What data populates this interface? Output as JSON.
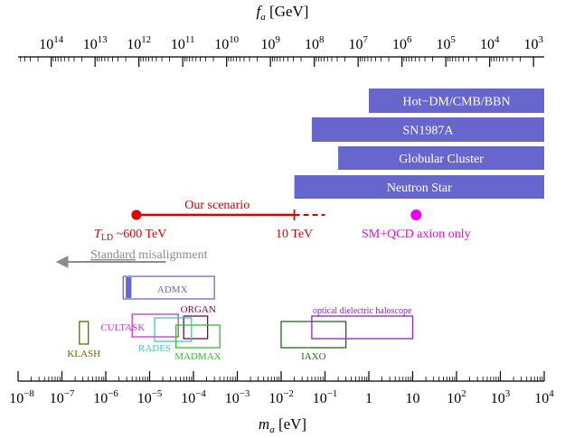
{
  "chart_data": {
    "type": "exclusion-plot",
    "x_bottom": {
      "var": "m",
      "sub": "a",
      "unit": "[eV]",
      "scale": "log",
      "range": [
        1e-08,
        10000.0
      ],
      "ticks": [
        {
          "b": "10",
          "e": "−8"
        },
        {
          "b": "10",
          "e": "−7"
        },
        {
          "b": "10",
          "e": "−6"
        },
        {
          "b": "10",
          "e": "−5"
        },
        {
          "b": "10",
          "e": "−4"
        },
        {
          "b": "10",
          "e": "−3"
        },
        {
          "b": "10",
          "e": "−2"
        },
        {
          "b": "10",
          "e": "−1"
        },
        {
          "b": "1",
          "e": ""
        },
        {
          "b": "10",
          "e": ""
        },
        {
          "b": "10",
          "e": "2"
        },
        {
          "b": "10",
          "e": "3"
        },
        {
          "b": "10",
          "e": "4"
        }
      ]
    },
    "x_top": {
      "var": "f",
      "sub": "a",
      "unit": "[GeV]",
      "scale": "log",
      "relation": "f_a = 5.7e6 GeV / (m_a / eV)",
      "ticks": [
        {
          "b": "10",
          "e": "14",
          "fa": 100000000000000.0
        },
        {
          "b": "10",
          "e": "13",
          "fa": 10000000000000.0
        },
        {
          "b": "10",
          "e": "12",
          "fa": 1000000000000.0
        },
        {
          "b": "10",
          "e": "11",
          "fa": 100000000000.0
        },
        {
          "b": "10",
          "e": "10",
          "fa": 10000000000.0
        },
        {
          "b": "10",
          "e": "9",
          "fa": 1000000000.0
        },
        {
          "b": "10",
          "e": "8",
          "fa": 100000000.0
        },
        {
          "b": "10",
          "e": "7",
          "fa": 10000000.0
        },
        {
          "b": "10",
          "e": "6",
          "fa": 1000000.0
        },
        {
          "b": "10",
          "e": "5",
          "fa": 100000.0
        },
        {
          "b": "10",
          "e": "4",
          "fa": 10000.0
        },
        {
          "b": "10",
          "e": "3",
          "fa": 1000.0
        }
      ]
    },
    "bounds": [
      {
        "label": "Hot−DM/CMB/BBN",
        "m_min": 1.0,
        "m_max": 10000.0,
        "color": "#6666cc"
      },
      {
        "label": "SN1987A",
        "m_min": 0.05,
        "m_max": 10000.0,
        "color": "#6666cc"
      },
      {
        "label": "Globular Cluster",
        "m_min": 0.2,
        "m_max": 10000.0,
        "color": "#6666cc"
      },
      {
        "label": "Neutron Star",
        "m_min": 0.02,
        "m_max": 10000.0,
        "color": "#6666cc"
      }
    ],
    "our_scenario": {
      "label": "Our scenario",
      "color": "#dd0000",
      "start_m": 5e-06,
      "solid_end_m": 0.02,
      "dashed_end_m": 0.1,
      "start_label": {
        "T": "T",
        "sub": "LD",
        "rest": " ~600 TeV"
      },
      "end_label": "10 TeV"
    },
    "sm_qcd": {
      "label": "SM+QCD axion only",
      "m": 12,
      "color": "#ee00ee"
    },
    "standard_misalignment": {
      "label_underlined": "Standard",
      "label_rest": " misalignment",
      "color": "#8c8c8c",
      "from_m": 1e-05,
      "to_m": 1e-07
    },
    "experiments": [
      {
        "label": "ADMX",
        "m_min": 2.5e-06,
        "m_max": 0.0003,
        "y_top": 0.0,
        "y_bot": 1.0,
        "color": "#6666cc",
        "filled_band": [
          2.6e-06,
          3.5e-06
        ]
      },
      {
        "label": "ORGAN",
        "m_min": 6e-05,
        "m_max": 0.00021,
        "color": "#7a0055"
      },
      {
        "label": "CULTASK",
        "m_min": 4e-06,
        "m_max": 4.5e-05,
        "color": "#cc33cc"
      },
      {
        "label": "RADES",
        "m_min": 1.3e-05,
        "m_max": 9e-05,
        "color": "#33cccc"
      },
      {
        "label": "MADMAX",
        "m_min": 4e-05,
        "m_max": 0.0004,
        "color": "#33bb33"
      },
      {
        "label": "KLASH",
        "m_min": 2.5e-07,
        "m_max": 4e-07,
        "color": "#666600"
      },
      {
        "label": "IAXO",
        "m_min": 0.01,
        "m_max": 0.3,
        "color": "#226622"
      },
      {
        "label": "optical dielectric haloscope",
        "m_min": 0.05,
        "m_max": 10,
        "color": "#8822cc"
      }
    ]
  }
}
